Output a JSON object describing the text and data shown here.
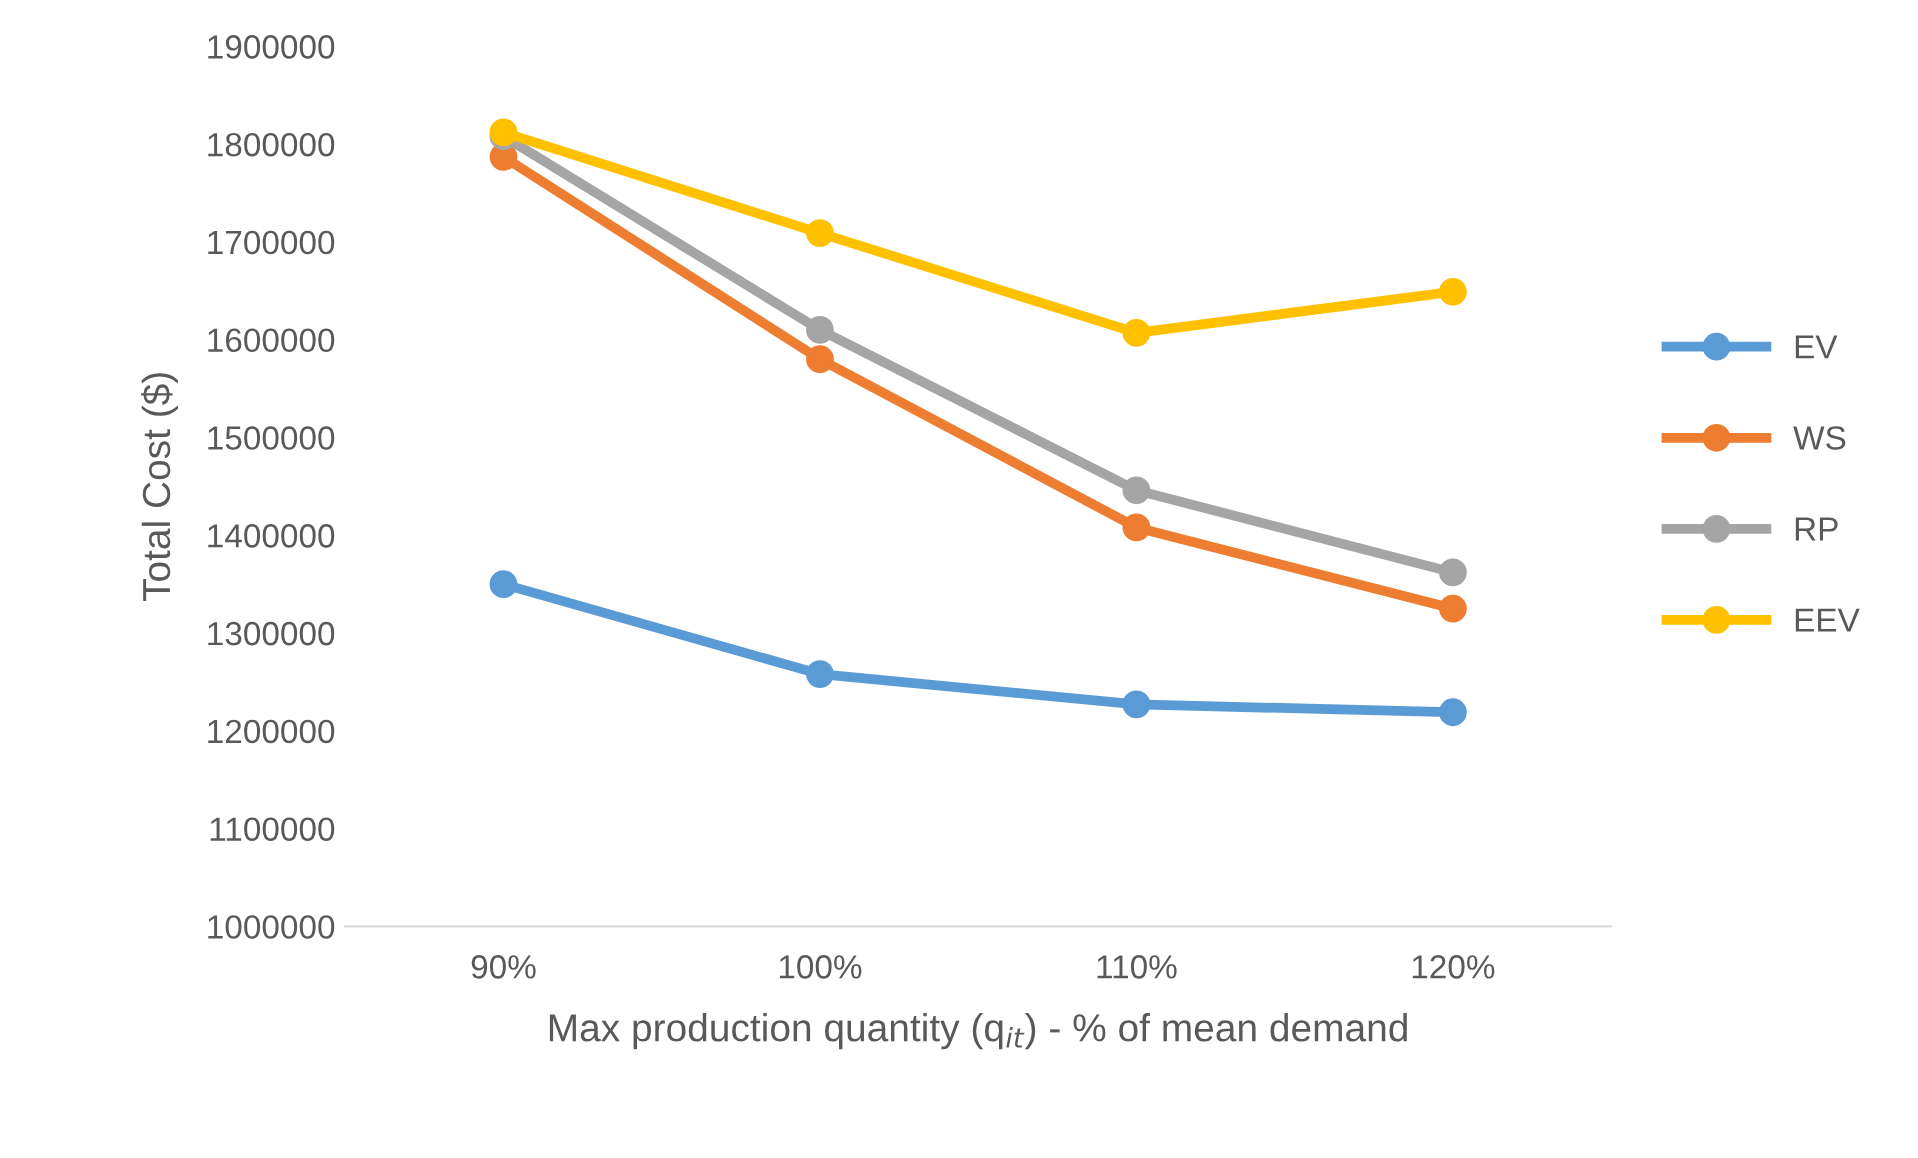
{
  "chart_data": {
    "type": "line",
    "xlabel": "Max production quantity (q$_{it}$) - % of mean demand",
    "ylabel": "Total Cost ($)",
    "categories": [
      "90%",
      "100%",
      "110%",
      "120%"
    ],
    "series": [
      {
        "name": "EV",
        "color": "#5b9bd5",
        "values": [
          1350000,
          1258000,
          1227000,
          1219000
        ]
      },
      {
        "name": "WS",
        "color": "#ed7d31",
        "values": [
          1787000,
          1580000,
          1408000,
          1325000
        ]
      },
      {
        "name": "RP",
        "color": "#a5a5a5",
        "values": [
          1808000,
          1610000,
          1446000,
          1362000
        ]
      },
      {
        "name": "EEV",
        "color": "#ffc000",
        "values": [
          1812000,
          1709000,
          1607000,
          1649000
        ]
      }
    ],
    "ylim": [
      1000000,
      1900000
    ],
    "yticks": [
      1000000,
      1100000,
      1200000,
      1300000,
      1400000,
      1500000,
      1600000,
      1700000,
      1800000,
      1900000
    ],
    "grid": false,
    "legend": "right",
    "marker": "circle",
    "line_style": "solid"
  }
}
